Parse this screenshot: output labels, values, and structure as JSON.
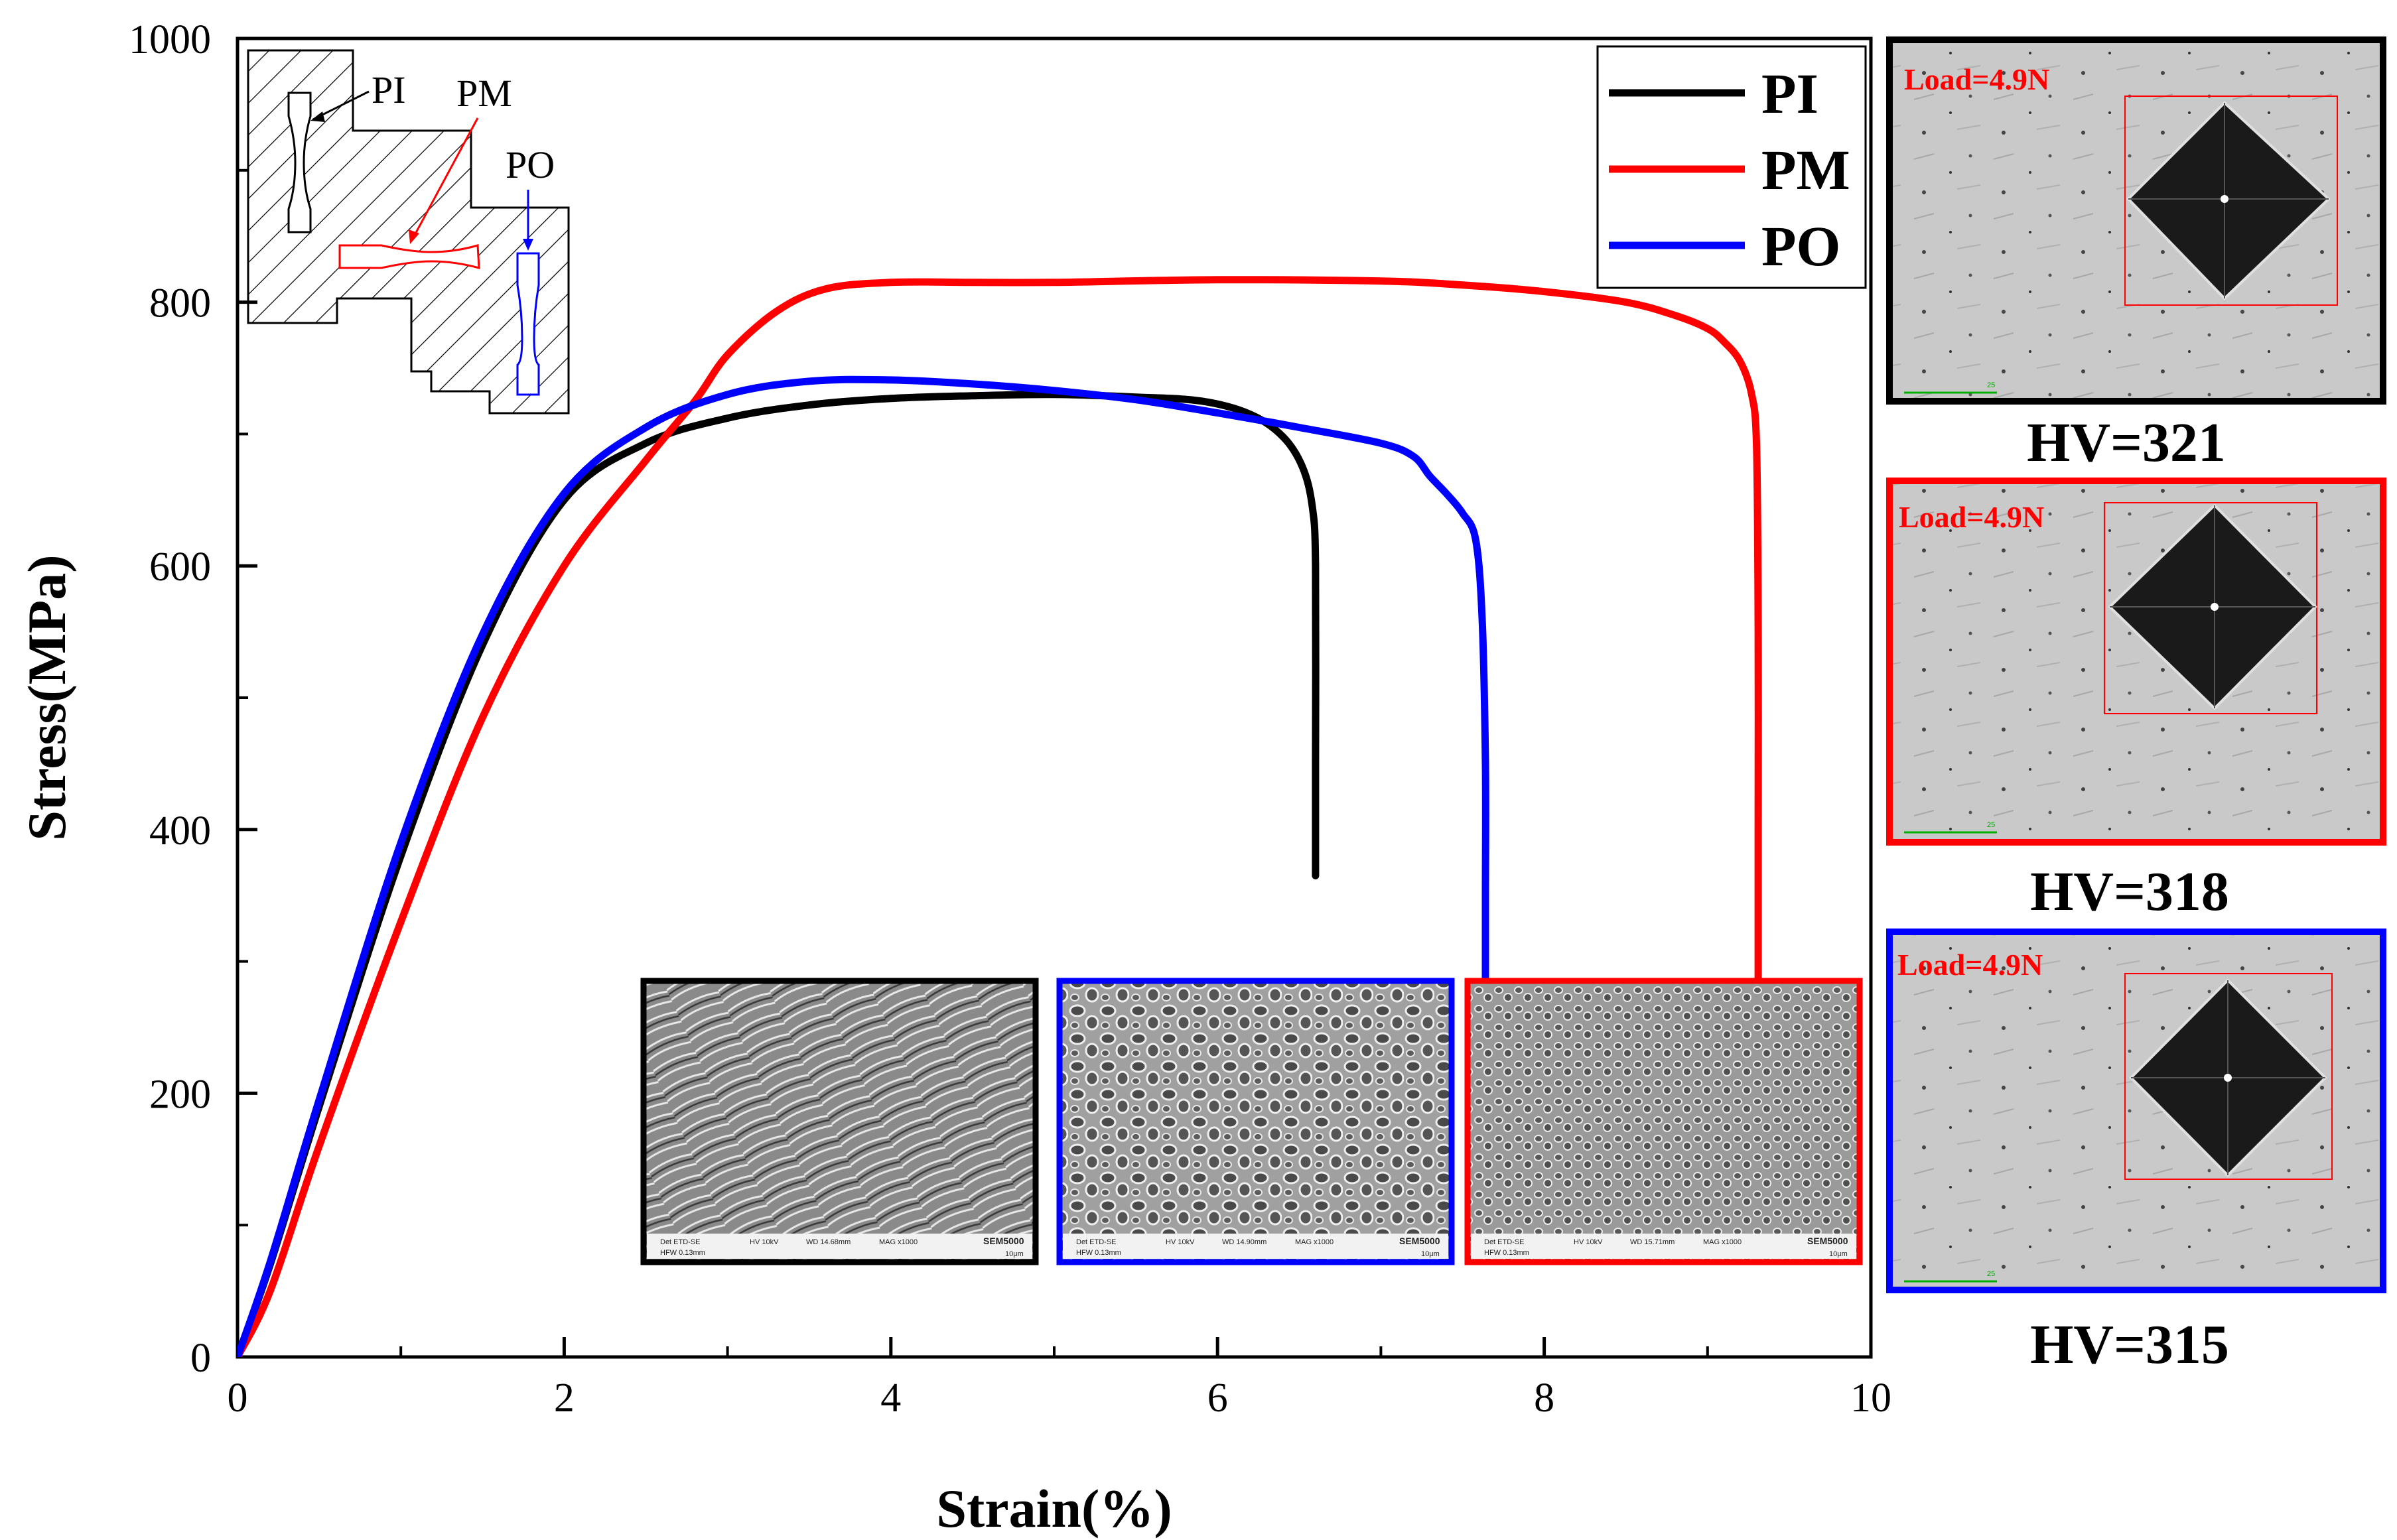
{
  "chart_data": {
    "type": "line",
    "xlabel": "Strain(%)",
    "ylabel": "Stress(MPa)",
    "xlim": [
      0,
      10
    ],
    "ylim": [
      0,
      1000
    ],
    "xticks": [
      0,
      2,
      4,
      6,
      8,
      10
    ],
    "yticks": [
      0,
      200,
      400,
      600,
      800,
      1000
    ],
    "legend_position": "top-right",
    "series": [
      {
        "name": "PI",
        "color": "#000000",
        "x": [
          0,
          0.2,
          0.5,
          1.0,
          1.5,
          2.0,
          2.5,
          3.0,
          3.5,
          4.0,
          4.5,
          5.0,
          5.5,
          5.9,
          6.2,
          6.4,
          6.52,
          6.58,
          6.6,
          6.6,
          6.6
        ],
        "y": [
          0,
          70,
          190,
          380,
          540,
          650,
          693,
          712,
          722,
          727,
          729,
          730,
          728,
          725,
          715,
          698,
          675,
          645,
          600,
          450,
          365
        ]
      },
      {
        "name": "PM",
        "color": "#ff0000",
        "x": [
          0,
          0.2,
          0.5,
          1.0,
          1.5,
          2.0,
          2.5,
          2.8,
          3.0,
          3.3,
          3.6,
          4.0,
          4.5,
          5.0,
          6.0,
          7.0,
          7.5,
          8.0,
          8.5,
          8.8,
          9.0,
          9.1,
          9.2,
          9.27,
          9.3,
          9.31,
          9.31,
          9.31
        ],
        "y": [
          0,
          50,
          160,
          330,
          485,
          600,
          680,
          725,
          760,
          793,
          810,
          815,
          815,
          815,
          817,
          816,
          813,
          808,
          800,
          790,
          780,
          770,
          755,
          730,
          690,
          550,
          400,
          280
        ]
      },
      {
        "name": "PO",
        "color": "#0000ff",
        "x": [
          0,
          0.2,
          0.5,
          1.0,
          1.5,
          2.0,
          2.5,
          3.0,
          3.5,
          4.0,
          4.5,
          5.0,
          5.5,
          6.0,
          6.5,
          7.0,
          7.2,
          7.3,
          7.4,
          7.5,
          7.58,
          7.62,
          7.64,
          7.64,
          7.64
        ],
        "y": [
          0,
          72,
          195,
          390,
          548,
          655,
          705,
          730,
          740,
          741,
          738,
          733,
          726,
          716,
          705,
          693,
          683,
          668,
          655,
          640,
          620,
          560,
          450,
          350,
          280
        ]
      }
    ]
  },
  "schematic_labels": {
    "pi": "PI",
    "pm": "PM",
    "po": "PO"
  },
  "fracture_images": [
    {
      "series": "PI",
      "border": "#000000",
      "det": "Det ETD-SE",
      "hv": "HV 10kV",
      "wd": "WD 14.68mm",
      "mag": "MAG x1000",
      "hfw": "HFW 0.13mm",
      "scale": "10μm",
      "brand": "SEM5000"
    },
    {
      "series": "PO",
      "border": "#0000ff",
      "det": "Det ETD-SE",
      "hv": "HV 10kV",
      "wd": "WD 14.90mm",
      "mag": "MAG x1000",
      "hfw": "HFW 0.13mm",
      "scale": "10μm",
      "brand": "SEM5000"
    },
    {
      "series": "PM",
      "border": "#ff0000",
      "det": "Det ETD-SE",
      "hv": "HV 10kV",
      "wd": "WD 15.71mm",
      "mag": "MAG x1000",
      "hfw": "HFW 0.13mm",
      "scale": "10μm",
      "brand": "SEM5000"
    }
  ],
  "hardness_panels": [
    {
      "series": "PI",
      "border": "#000000",
      "load": "Load=4.9N",
      "hv": "HV=321",
      "scale": "25"
    },
    {
      "series": "PM",
      "border": "#ff0000",
      "load": "Load=4.9N",
      "hv": "HV=318",
      "scale": "25"
    },
    {
      "series": "PO",
      "border": "#0000ff",
      "load": "Load=4.9N",
      "hv": "HV=315",
      "scale": "25"
    }
  ]
}
